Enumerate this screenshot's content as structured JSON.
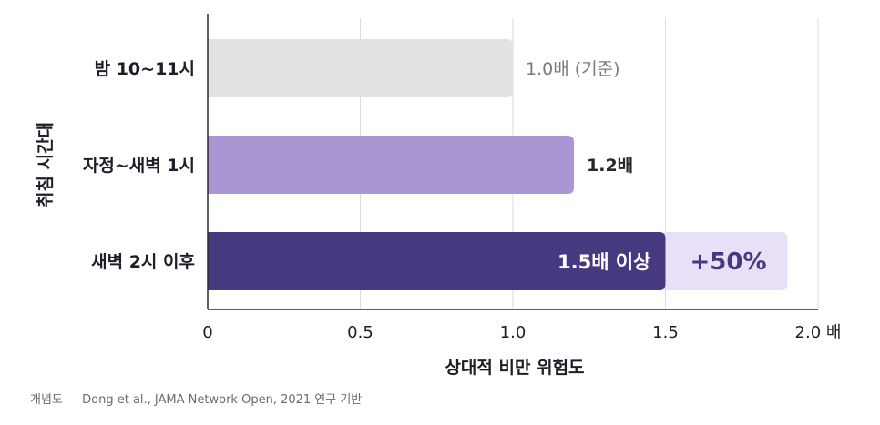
{
  "chart_data": {
    "type": "bar",
    "orientation": "horizontal",
    "ylabel": "취침 시간대",
    "xlabel": "상대적 비만 위험도",
    "xlim": [
      0,
      2.0
    ],
    "xticks": [
      {
        "value": 0,
        "label": "0"
      },
      {
        "value": 0.5,
        "label": "0.5"
      },
      {
        "value": 1.0,
        "label": "1.0"
      },
      {
        "value": 1.5,
        "label": "1.5"
      },
      {
        "value": 2.0,
        "label": "2.0 배"
      }
    ],
    "grid": true,
    "categories": [
      "밤 10~11시",
      "자정~새벽 1시",
      "새벽 2시 이후"
    ],
    "values": [
      1.0,
      1.2,
      1.5
    ],
    "bar_labels": [
      "1.0배 (기준)",
      "1.2배",
      "1.5배 이상"
    ],
    "extension": {
      "category": "새벽 2시 이후",
      "from": 1.5,
      "to": 1.9,
      "label": "+50%"
    },
    "colors": {
      "bars": [
        "#e2e2e2",
        "#a996d3",
        "#46397f"
      ],
      "extension": "#e8e0f7",
      "extension_label": "#46397f",
      "label_outside": [
        "#7a7a7a",
        "#26262e"
      ],
      "label_inside": "#ffffff"
    }
  },
  "footnote": "개념도 — Dong et al., JAMA Network Open, 2021 연구 기반"
}
